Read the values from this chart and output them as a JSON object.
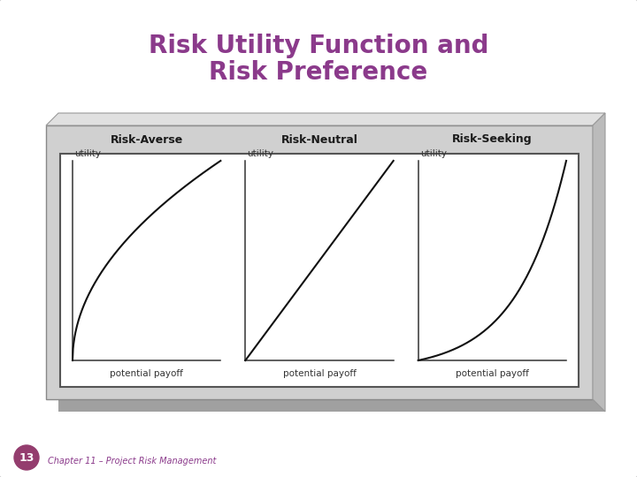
{
  "title_line1": "Risk Utility Function and",
  "title_line2": "Risk Preference",
  "title_color": "#8b3a8b",
  "title_fontsize": 20,
  "bg_color": "#ffffff",
  "panel_bg": "#d0d0d0",
  "panel_top_bg": "#c8c8c8",
  "panel_side_bg": "#b8b8b8",
  "inner_bg": "#ffffff",
  "inner_border": "#555555",
  "categories": [
    "Risk-Averse",
    "Risk-Neutral",
    "Risk-Seeking"
  ],
  "cat_fontsize": 9,
  "axis_label_fontsize": 7.5,
  "axis_label_color": "#333333",
  "curve_color": "#111111",
  "curve_lw": 1.5,
  "utility_label": "utility",
  "payoff_label": "potential payoff",
  "footer_num": "13",
  "footer_num_color": "#ffffff",
  "footer_num_bg": "#943d6e",
  "footer_text": "Chapter 11 – Project Risk Management",
  "footer_text_color": "#8b3a8b",
  "footer_fontsize": 7
}
